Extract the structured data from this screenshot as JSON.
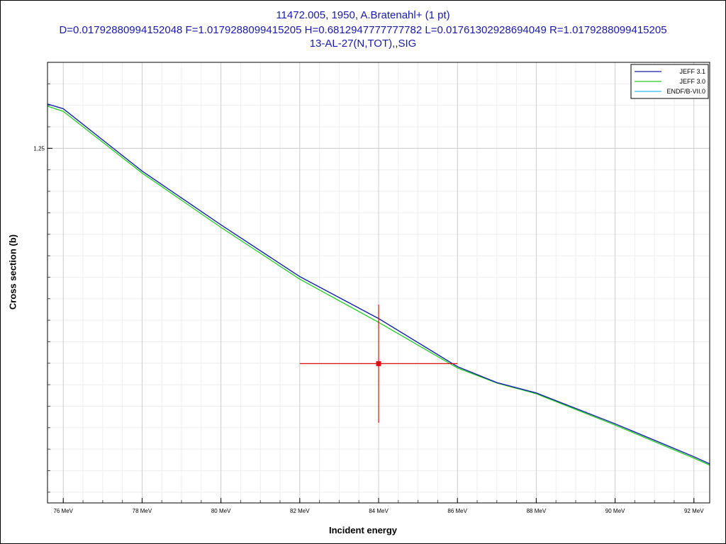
{
  "header": {
    "line1": "11472.005, 1950, A.Bratenahl+ (1 pt)",
    "line2": "D=0.01792880994152048 F=1.0179288099415205 H=0.6812947777777782 L=0.01761302928694049 R=1.0179288099415205",
    "line3": "13-AL-27(N,TOT),,SIG"
  },
  "chart_data": {
    "type": "line",
    "title": "11472.005, 1950, A.Bratenahl+ (1 pt)",
    "xlabel": "Incident energy",
    "ylabel": "Cross section (b)",
    "xlim": [
      75.6,
      92.4
    ],
    "ylim": [
      1.085,
      1.29
    ],
    "x_ticks": [
      {
        "value": 76,
        "label": "76 MeV"
      },
      {
        "value": 78,
        "label": "78 MeV"
      },
      {
        "value": 80,
        "label": "80 MeV"
      },
      {
        "value": 82,
        "label": "82 MeV"
      },
      {
        "value": 84,
        "label": "84 MeV"
      },
      {
        "value": 86,
        "label": "86 MeV"
      },
      {
        "value": 88,
        "label": "88 MeV"
      },
      {
        "value": 90,
        "label": "90 MeV"
      },
      {
        "value": 92,
        "label": "92 MeV"
      }
    ],
    "y_ticks": [
      {
        "value": 1.25,
        "label": "1,25"
      }
    ],
    "grid": true,
    "legend_position": "top-right",
    "series": [
      {
        "name": "JEFF 3.1",
        "color": "#1a1aa6",
        "x": [
          75.6,
          76,
          78,
          80,
          82,
          84,
          86,
          87,
          88,
          90,
          92,
          92.4
        ],
        "y": [
          1.2706,
          1.2684,
          1.2394,
          1.2144,
          1.1903,
          1.1708,
          1.1484,
          1.141,
          1.1362,
          1.1218,
          1.1065,
          1.1032
        ]
      },
      {
        "name": "JEFF 3.0",
        "color": "#22cc22",
        "x": [
          75.6,
          76,
          78,
          80,
          82,
          84,
          86,
          87,
          88,
          90,
          92,
          92.4
        ],
        "y": [
          1.2696,
          1.2672,
          1.2385,
          1.2132,
          1.1891,
          1.169,
          1.1478,
          1.1408,
          1.1358,
          1.1212,
          1.1058,
          1.1026
        ]
      },
      {
        "name": "ENDF/B-VII.0",
        "color": "#33bbee",
        "x": [
          75.6,
          76,
          78,
          80,
          82,
          84,
          86,
          87,
          88,
          90,
          92,
          92.4
        ],
        "y": [
          1.2706,
          1.2684,
          1.2394,
          1.2144,
          1.1903,
          1.1708,
          1.1484,
          1.141,
          1.1362,
          1.1218,
          1.1065,
          1.1032
        ]
      }
    ],
    "experimental": [
      {
        "x": 84.0,
        "y": 1.1498,
        "x_err": 2.0,
        "y_err": 0.0275,
        "color": "#dd1111"
      }
    ]
  }
}
